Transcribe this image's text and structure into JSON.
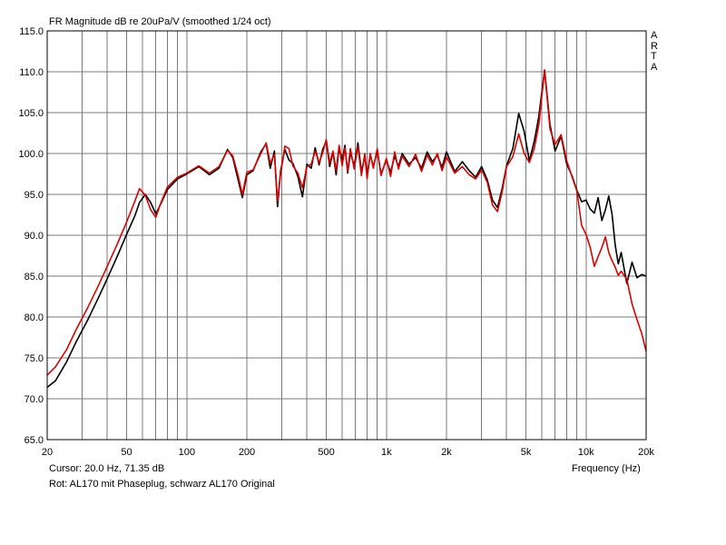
{
  "header": {
    "title": "FR Magnitude dB re 20uPa/V (smoothed 1/24 oct)",
    "brand_letters": [
      "A",
      "R",
      "T",
      "A"
    ]
  },
  "footer": {
    "cursor": "Cursor: 20.0 Hz, 71.35 dB",
    "note": "Rot: AL170 mit Phaseplug, schwarz AL170 Original",
    "xlabel": "Frequency (Hz)"
  },
  "chart_data": {
    "type": "line",
    "title": "FR Magnitude dB re 20uPa/V (smoothed 1/24 oct)",
    "xlabel": "Frequency (Hz)",
    "ylabel": "",
    "xscale": "log",
    "xlim": [
      20,
      20000
    ],
    "ylim": [
      65,
      115
    ],
    "grid": true,
    "x_ticks": [
      {
        "value": 20,
        "label": "20"
      },
      {
        "value": 50,
        "label": "50"
      },
      {
        "value": 100,
        "label": "100"
      },
      {
        "value": 200,
        "label": "200"
      },
      {
        "value": 500,
        "label": "500"
      },
      {
        "value": 1000,
        "label": "1k"
      },
      {
        "value": 2000,
        "label": "2k"
      },
      {
        "value": 5000,
        "label": "5k"
      },
      {
        "value": 10000,
        "label": "10k"
      },
      {
        "value": 20000,
        "label": "20k"
      }
    ],
    "y_ticks": [
      {
        "value": 115,
        "label": "115.0"
      },
      {
        "value": 110,
        "label": "110.0"
      },
      {
        "value": 105,
        "label": "105.0"
      },
      {
        "value": 100,
        "label": "100.0"
      },
      {
        "value": 95,
        "label": "95.0"
      },
      {
        "value": 90,
        "label": "90.0"
      },
      {
        "value": 85,
        "label": "85.0"
      },
      {
        "value": 80,
        "label": "80.0"
      },
      {
        "value": 75,
        "label": "75.0"
      },
      {
        "value": 70,
        "label": "70.0"
      },
      {
        "value": 65,
        "label": "65.0"
      }
    ],
    "series": [
      {
        "color": "#000000",
        "x": [
          20,
          22,
          25,
          28,
          32,
          36,
          40,
          45,
          50,
          55,
          58,
          62,
          66,
          70,
          74,
          80,
          90,
          100,
          115,
          130,
          145,
          160,
          170,
          180,
          190,
          200,
          215,
          235,
          250,
          262,
          275,
          285,
          295,
          310,
          325,
          340,
          360,
          380,
          400,
          420,
          440,
          460,
          480,
          500,
          520,
          540,
          560,
          580,
          600,
          620,
          640,
          660,
          690,
          720,
          750,
          780,
          800,
          830,
          860,
          900,
          940,
          1000,
          1050,
          1100,
          1150,
          1200,
          1300,
          1400,
          1500,
          1600,
          1700,
          1800,
          1900,
          2000,
          2200,
          2400,
          2600,
          2800,
          3000,
          3200,
          3400,
          3600,
          3800,
          4000,
          4300,
          4600,
          4900,
          5200,
          5500,
          5800,
          6200,
          6600,
          7000,
          7500,
          8000,
          8500,
          9000,
          9500,
          10000,
          10500,
          11000,
          11500,
          12000,
          12500,
          13000,
          13500,
          14000,
          14500,
          15000,
          16000,
          17000,
          18000,
          19000,
          20000
        ],
        "y": [
          71.4,
          72.2,
          74.5,
          77,
          79.7,
          82.3,
          84.7,
          87.5,
          90.1,
          92.4,
          94,
          95,
          94,
          92.6,
          93.8,
          95.6,
          96.9,
          97.5,
          98.4,
          97.4,
          98.2,
          100.5,
          99.5,
          97,
          94.6,
          97.4,
          97.9,
          100.2,
          101.2,
          98.2,
          100.3,
          93.5,
          97.8,
          100.5,
          99.2,
          98.8,
          97.2,
          94.7,
          98.7,
          98.2,
          100.7,
          98.6,
          100.5,
          101.5,
          98.4,
          100.2,
          97.4,
          100.8,
          99.1,
          101,
          97.6,
          100.1,
          98.5,
          101.3,
          97.8,
          99.6,
          97.4,
          99.8,
          98.4,
          100.3,
          97.5,
          99.2,
          97.7,
          99.7,
          98.4,
          100,
          98.7,
          99.5,
          98.2,
          100.2,
          99,
          99.8,
          98.3,
          100.2,
          97.8,
          99,
          97.9,
          97.1,
          98.4,
          96.8,
          94.3,
          93.4,
          95.7,
          98.5,
          100.6,
          104.9,
          102.7,
          99.1,
          101.5,
          104.5,
          110.2,
          103.5,
          100.3,
          102.1,
          98.7,
          97.3,
          95.5,
          94.1,
          94.3,
          93.2,
          92.7,
          94.6,
          91.8,
          93.1,
          94.8,
          92.6,
          88.8,
          86.5,
          87.9,
          84.1,
          86.7,
          84.8,
          85.2,
          85
        ]
      },
      {
        "color": "#dd0000",
        "x": [
          20,
          22,
          25,
          28,
          32,
          36,
          40,
          45,
          50,
          55,
          58,
          62,
          66,
          70,
          74,
          80,
          90,
          100,
          115,
          130,
          145,
          160,
          170,
          180,
          190,
          200,
          215,
          235,
          250,
          262,
          275,
          285,
          295,
          310,
          325,
          340,
          360,
          380,
          400,
          420,
          440,
          460,
          480,
          500,
          520,
          540,
          560,
          580,
          600,
          620,
          640,
          660,
          690,
          720,
          750,
          780,
          800,
          830,
          860,
          900,
          940,
          1000,
          1050,
          1100,
          1150,
          1200,
          1300,
          1400,
          1500,
          1600,
          1700,
          1800,
          1900,
          2000,
          2200,
          2400,
          2600,
          2800,
          3000,
          3200,
          3400,
          3600,
          3800,
          4000,
          4300,
          4600,
          4900,
          5200,
          5500,
          5800,
          6200,
          6600,
          7000,
          7500,
          8000,
          8500,
          9000,
          9500,
          10000,
          10500,
          11000,
          11500,
          12000,
          12500,
          13000,
          13500,
          14000,
          14500,
          15000,
          16000,
          17000,
          18000,
          19000,
          20000
        ],
        "y": [
          72.9,
          73.9,
          76,
          78.5,
          81.2,
          83.8,
          86.2,
          89,
          91.6,
          94.2,
          95.7,
          94.9,
          93.1,
          92.2,
          93.9,
          95.9,
          97.1,
          97.6,
          98.5,
          97.6,
          98.4,
          100.4,
          99.7,
          97.5,
          95,
          97.7,
          98,
          100,
          101.3,
          98.8,
          99.9,
          94.2,
          97.4,
          100.9,
          100.6,
          98.5,
          97.6,
          95.8,
          98.4,
          98.7,
          100.3,
          98.9,
          100.1,
          101.7,
          98.8,
          100.3,
          97.9,
          101,
          98.5,
          100.7,
          97.8,
          100.6,
          98.1,
          100.9,
          97.3,
          100,
          96.9,
          100,
          98.2,
          100.6,
          97.3,
          99.4,
          97.2,
          100.2,
          98.1,
          99.7,
          98.4,
          99.9,
          97.8,
          99.8,
          98.6,
          100,
          97.9,
          99.6,
          97.6,
          98.4,
          97.4,
          96.9,
          98,
          96.5,
          93.7,
          92.9,
          95.3,
          98.4,
          99.6,
          102.4,
          100,
          98.9,
          100.6,
          103.5,
          110.2,
          103,
          101.1,
          102.3,
          99.1,
          97.2,
          95.4,
          91.2,
          90.1,
          88.5,
          86.2,
          87.4,
          88.5,
          89.8,
          87.9,
          86.9,
          86.1,
          85.1,
          85.6,
          84.6,
          81.6,
          79.7,
          78,
          75.8
        ]
      }
    ]
  }
}
